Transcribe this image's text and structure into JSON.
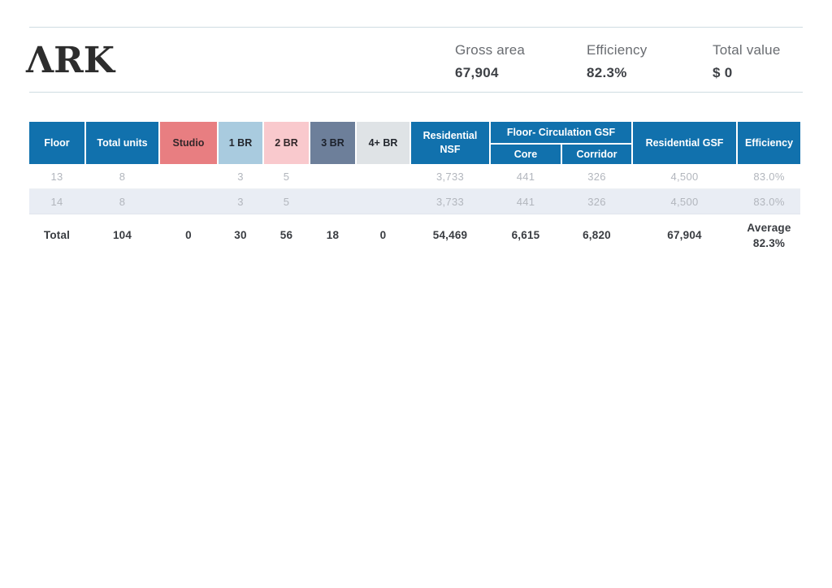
{
  "header": {
    "logo": {
      "text": "ARK",
      "display": "ΛRK"
    },
    "stats": [
      {
        "label": "Gross area",
        "value": "67,904"
      },
      {
        "label": "Efficiency",
        "value": "82.3%"
      },
      {
        "label": "Total value",
        "value": "$ 0"
      }
    ]
  },
  "table": {
    "headers": {
      "floor": "Floor",
      "total_units": "Total units",
      "studio": "Studio",
      "br1": "1 BR",
      "br2": "2 BR",
      "br3": "3 BR",
      "br4": "4+ BR",
      "res_nsf_line1": "Residential",
      "res_nsf_line2": "NSF",
      "circulation_group": "Floor- Circulation GSF",
      "core": "Core",
      "corridor": "Corridor",
      "res_gsf": "Residential GSF",
      "efficiency": "Efficiency"
    },
    "rows": [
      {
        "floor": "13",
        "total_units": "8",
        "studio": "",
        "br1": "3",
        "br2": "5",
        "br3": "",
        "br4": "",
        "res_nsf": "3,733",
        "core": "441",
        "corridor": "326",
        "res_gsf": "4,500",
        "efficiency": "83.0%"
      },
      {
        "floor": "14",
        "total_units": "8",
        "studio": "",
        "br1": "3",
        "br2": "5",
        "br3": "",
        "br4": "",
        "res_nsf": "3,733",
        "core": "441",
        "corridor": "326",
        "res_gsf": "4,500",
        "efficiency": "83.0%"
      }
    ],
    "total": {
      "floor": "Total",
      "total_units": "104",
      "studio": "0",
      "br1": "30",
      "br2": "56",
      "br3": "18",
      "br4": "0",
      "res_nsf": "54,469",
      "core": "6,615",
      "corridor": "6,820",
      "res_gsf": "67,904",
      "efficiency_line1": "Average",
      "efficiency_line2": "82.3%"
    }
  },
  "colors": {
    "header_blue": "#1171ad",
    "studio": "#e87e81",
    "br1": "#a9cbdf",
    "br2": "#f9c9cd",
    "br3": "#6d7f9a",
    "br4": "#dfe3e6",
    "row_stripe": "#e9edf4",
    "divider": "#cfdde2"
  }
}
